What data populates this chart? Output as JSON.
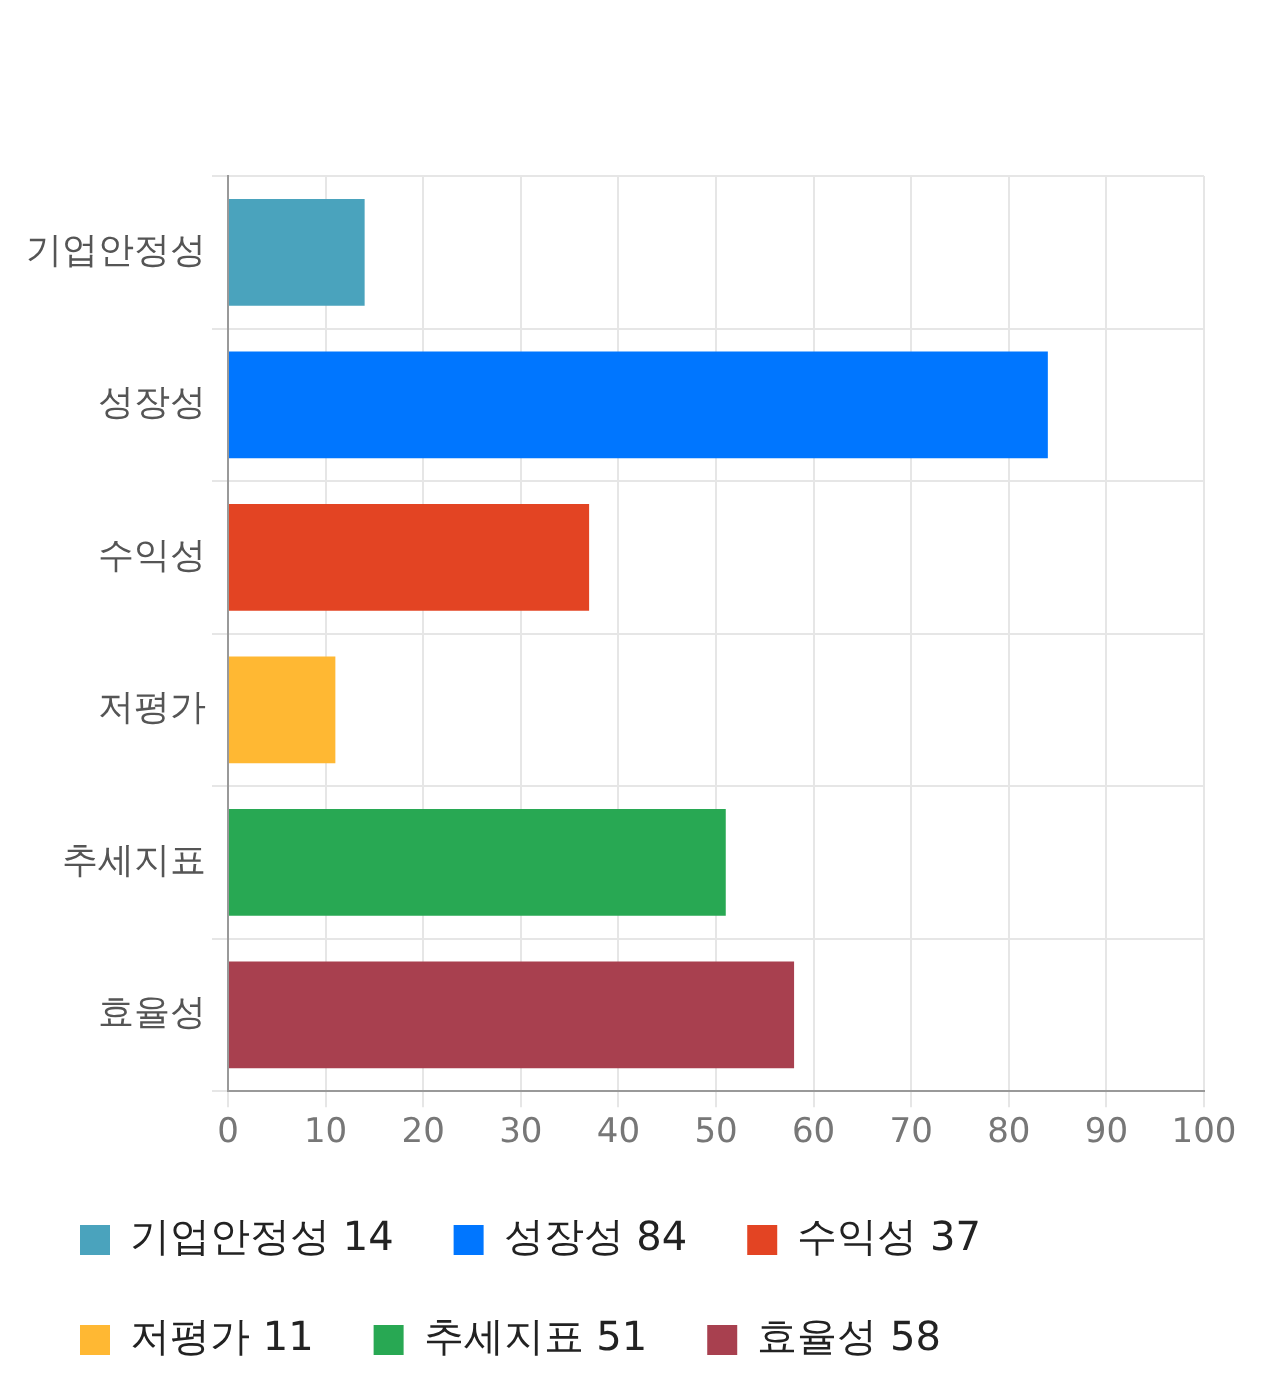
{
  "chart_data": {
    "type": "bar",
    "orientation": "horizontal",
    "stacked": true,
    "categories": [
      "기업안정성",
      "성장성",
      "수익성",
      "저평가",
      "추세지표",
      "효율성"
    ],
    "series": [
      {
        "name": "기업안정성 14",
        "color": "#4aa3bd",
        "values": [
          14,
          null,
          null,
          null,
          null,
          null
        ]
      },
      {
        "name": "성장성 84",
        "color": "#0076ff",
        "values": [
          null,
          84,
          null,
          null,
          null,
          null
        ]
      },
      {
        "name": "수익성 37",
        "color": "#e34423",
        "values": [
          null,
          null,
          37,
          null,
          null,
          null
        ]
      },
      {
        "name": "저평가 11",
        "color": "#ffb833",
        "values": [
          null,
          null,
          null,
          11,
          null,
          null
        ]
      },
      {
        "name": "추세지표 51",
        "color": "#28a853",
        "values": [
          null,
          null,
          null,
          null,
          51,
          null
        ]
      },
      {
        "name": "효율성 58",
        "color": "#a8404f",
        "values": [
          null,
          null,
          null,
          null,
          null,
          58
        ]
      }
    ],
    "xlim": [
      0,
      100
    ],
    "xticks": [
      0,
      10,
      20,
      30,
      40,
      50,
      60,
      70,
      80,
      90,
      100
    ],
    "grid": true,
    "legend": "bottom"
  }
}
